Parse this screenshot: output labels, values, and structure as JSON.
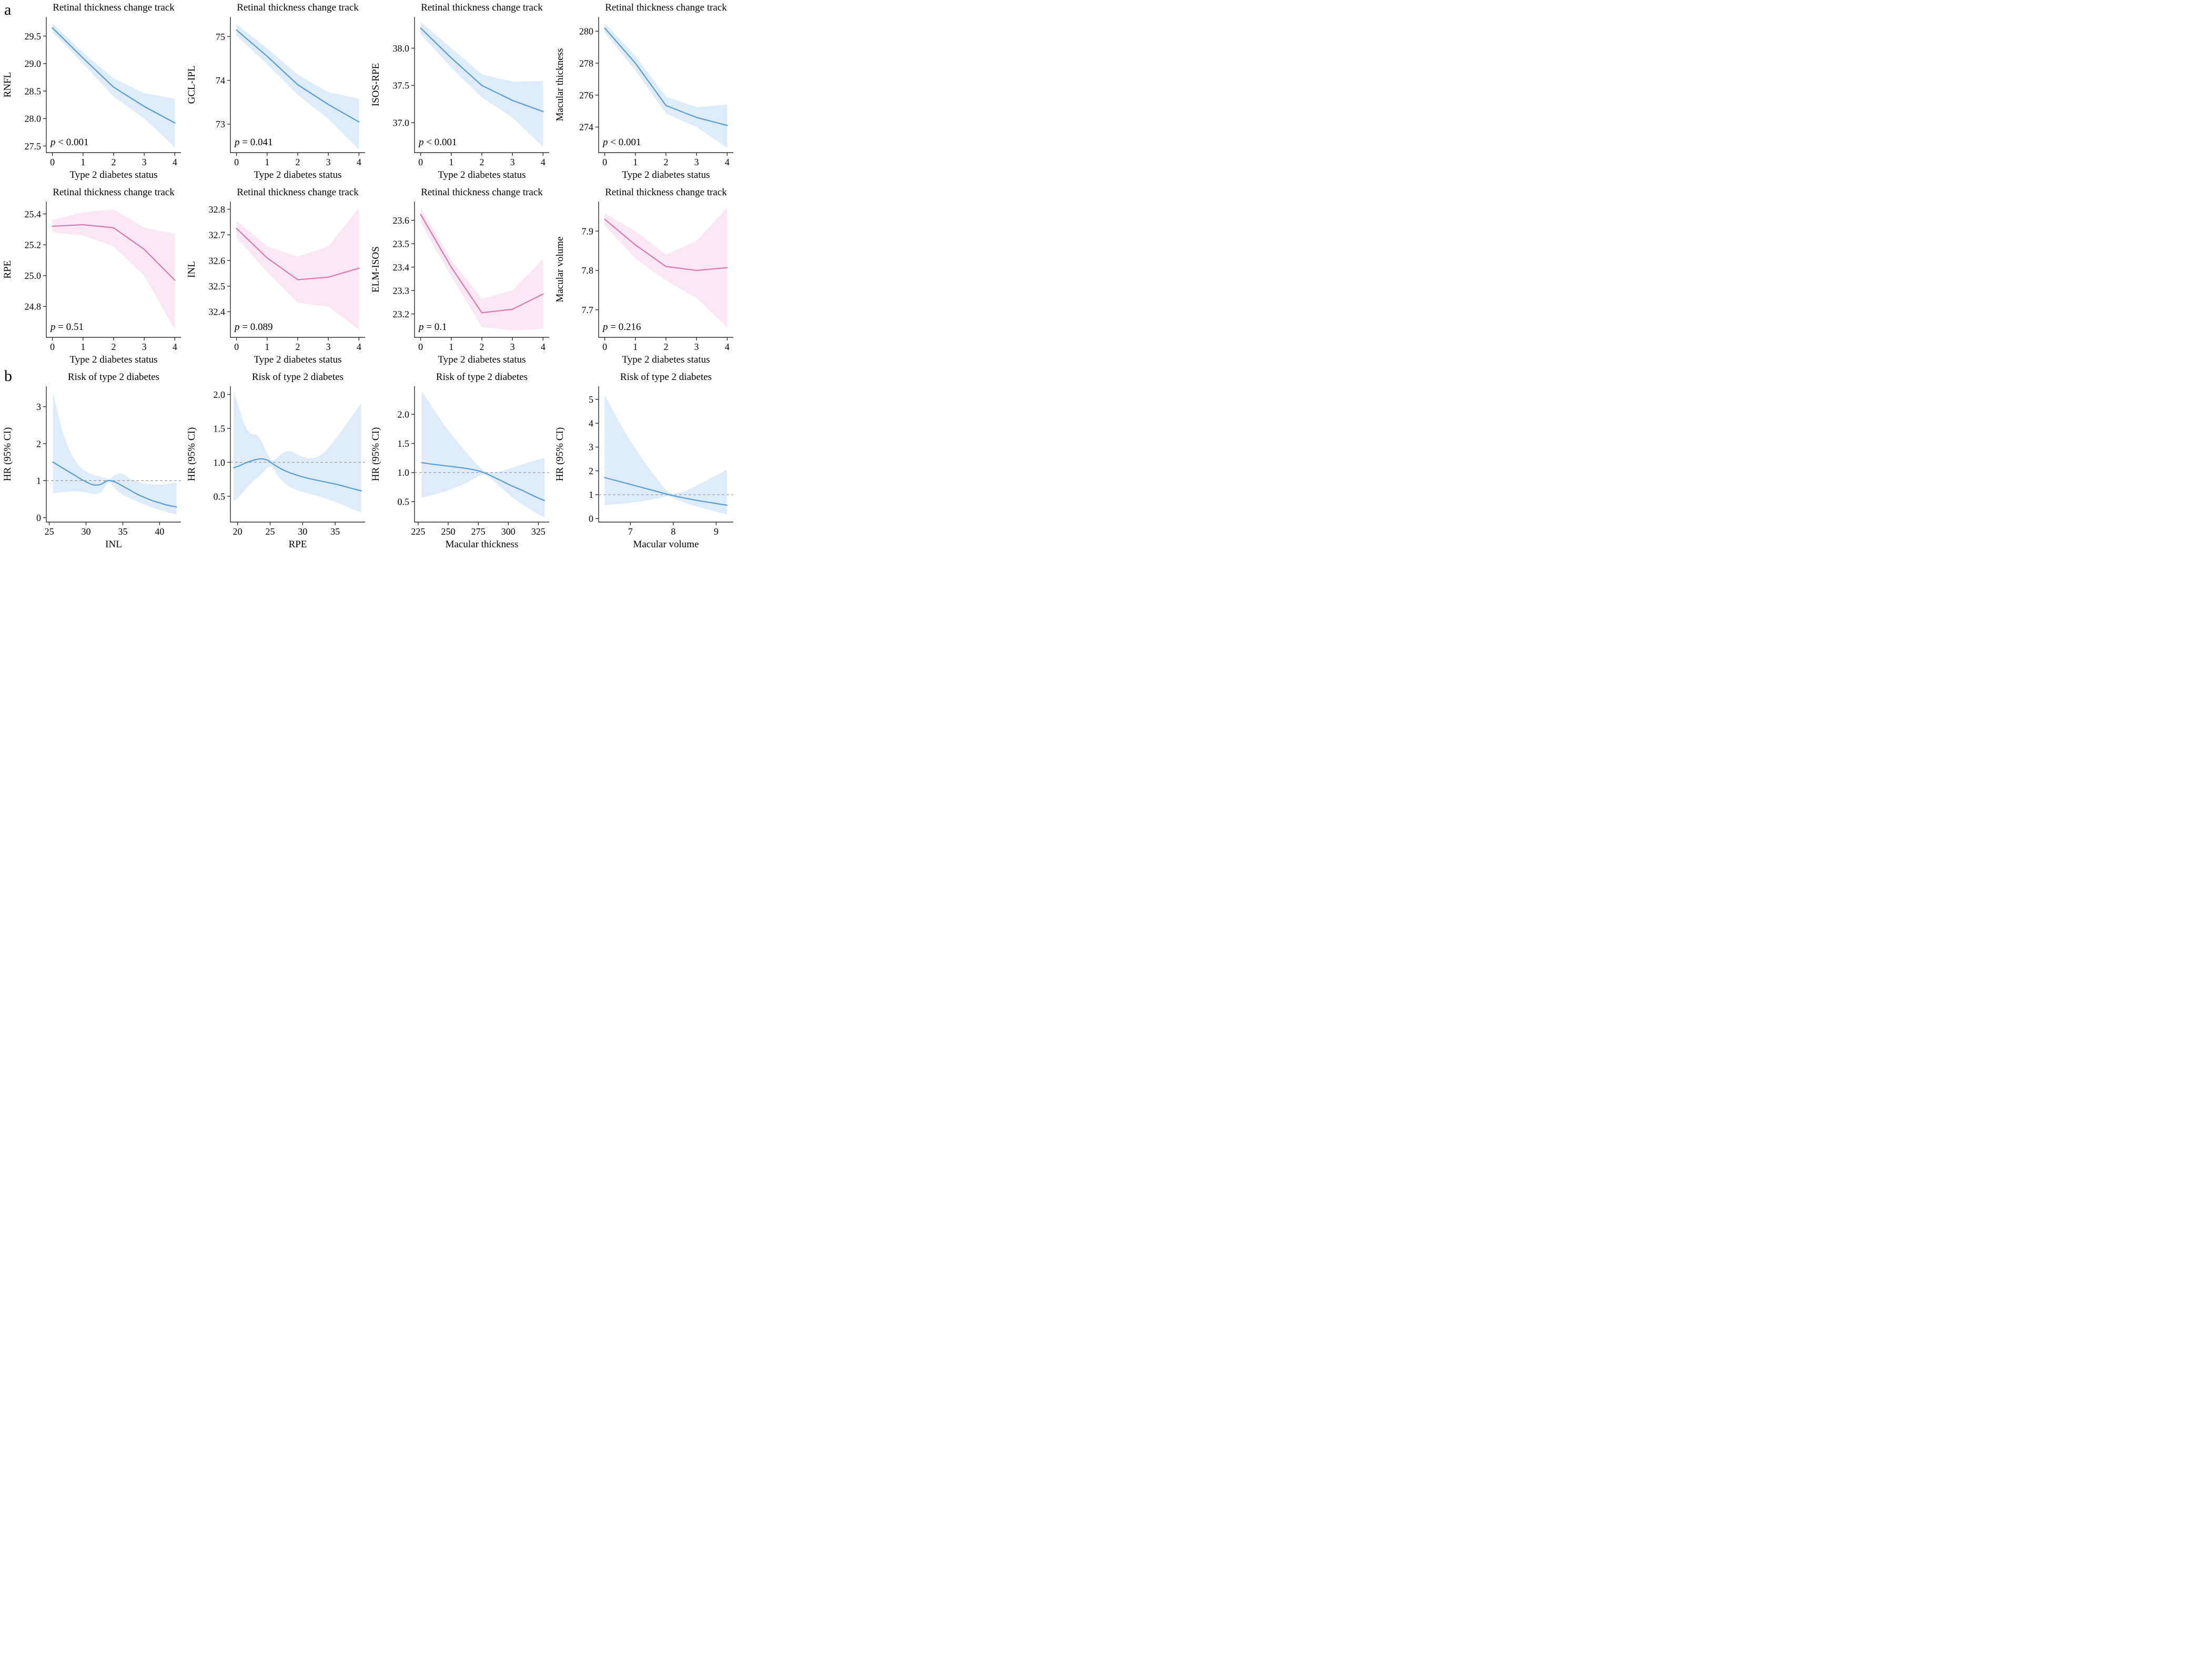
{
  "figure": {
    "panel_a": "a",
    "panel_b": "b",
    "layout": {
      "columns": 4,
      "rows": 3,
      "grid": true,
      "legend": "none"
    }
  },
  "colors": {
    "blue_line": "#5b9fd4",
    "blue_band": "#ddecf8",
    "pink_line": "#d97cb0",
    "pink_band": "#f9e7f3",
    "axis": "#2f2f2f",
    "ref_line": "#9a9a9a",
    "text": "#000000"
  },
  "chart_data": [
    {
      "id": "track-rnfl",
      "type": "line",
      "palette": "blue",
      "smooth": false,
      "ref_line": null,
      "title": "Retinal thickness change track",
      "xlabel": "Type 2 diabetes status",
      "ylabel": "RNFL",
      "p_label": "p < 0.001",
      "x": [
        0,
        1,
        2,
        3,
        4
      ],
      "y": [
        29.65,
        29.1,
        28.57,
        28.22,
        27.92
      ],
      "upper": [
        29.73,
        29.2,
        28.73,
        28.46,
        28.36
      ],
      "lower": [
        29.57,
        29.0,
        28.4,
        28.0,
        27.48
      ],
      "xlim": [
        -0.2,
        4.2
      ],
      "ylim": [
        27.38,
        29.85
      ],
      "xtick_values": [
        0,
        1,
        2,
        3,
        4
      ],
      "xtick_labels": [
        "0",
        "1",
        "2",
        "3",
        "4"
      ],
      "ytick_values": [
        27.5,
        28.0,
        28.5,
        29.0,
        29.5
      ],
      "ytick_labels": [
        "27.5",
        "28.0",
        "28.5",
        "29.0",
        "29.5"
      ]
    },
    {
      "id": "track-gcl-ipl",
      "type": "line",
      "palette": "blue",
      "smooth": false,
      "ref_line": null,
      "title": "Retinal thickness change track",
      "xlabel": "Type 2 diabetes status",
      "ylabel": "GCL-IPL",
      "p_label": "p = 0.041",
      "x": [
        0,
        1,
        2,
        3,
        4
      ],
      "y": [
        75.15,
        74.55,
        73.9,
        73.45,
        73.05
      ],
      "upper": [
        75.28,
        74.73,
        74.13,
        73.73,
        73.58
      ],
      "lower": [
        75.02,
        74.37,
        73.67,
        73.12,
        72.42
      ],
      "xlim": [
        -0.2,
        4.2
      ],
      "ylim": [
        72.35,
        75.45
      ],
      "xtick_values": [
        0,
        1,
        2,
        3,
        4
      ],
      "xtick_labels": [
        "0",
        "1",
        "2",
        "3",
        "4"
      ],
      "ytick_values": [
        73,
        74,
        75
      ],
      "ytick_labels": [
        "73",
        "74",
        "75"
      ]
    },
    {
      "id": "track-isos-rpe",
      "type": "line",
      "palette": "blue",
      "smooth": false,
      "ref_line": null,
      "title": "Retinal thickness change track",
      "xlabel": "Type 2 diabetes status",
      "ylabel": "ISOS-RPE",
      "p_label": "p < 0.001",
      "x": [
        0,
        1,
        2,
        3,
        4
      ],
      "y": [
        38.27,
        37.87,
        37.5,
        37.3,
        37.15
      ],
      "upper": [
        38.35,
        38.0,
        37.65,
        37.55,
        37.56
      ],
      "lower": [
        38.19,
        37.74,
        37.34,
        37.07,
        36.68
      ],
      "xlim": [
        -0.2,
        4.2
      ],
      "ylim": [
        36.6,
        38.42
      ],
      "xtick_values": [
        0,
        1,
        2,
        3,
        4
      ],
      "xtick_labels": [
        "0",
        "1",
        "2",
        "3",
        "4"
      ],
      "ytick_values": [
        37.0,
        37.5,
        38.0
      ],
      "ytick_labels": [
        "37.0",
        "37.5",
        "38.0"
      ]
    },
    {
      "id": "track-macular-thickness",
      "type": "line",
      "palette": "blue",
      "smooth": false,
      "ref_line": null,
      "title": "Retinal thickness change track",
      "xlabel": "Type 2 diabetes status",
      "ylabel": "Macular thickness",
      "p_label": "p < 0.001",
      "x": [
        0,
        1,
        2,
        3,
        4
      ],
      "y": [
        280.2,
        278.0,
        275.35,
        274.6,
        274.1
      ],
      "upper": [
        280.5,
        278.45,
        275.9,
        275.25,
        275.4
      ],
      "lower": [
        279.9,
        277.55,
        274.85,
        274.0,
        272.7
      ],
      "xlim": [
        -0.2,
        4.2
      ],
      "ylim": [
        272.4,
        280.9
      ],
      "xtick_values": [
        0,
        1,
        2,
        3,
        4
      ],
      "xtick_labels": [
        "0",
        "1",
        "2",
        "3",
        "4"
      ],
      "ytick_values": [
        274,
        276,
        278,
        280
      ],
      "ytick_labels": [
        "274",
        "276",
        "278",
        "280"
      ]
    },
    {
      "id": "track-rpe",
      "type": "line",
      "palette": "pink",
      "smooth": false,
      "ref_line": null,
      "title": "Retinal thickness change track",
      "xlabel": "Type 2 diabetes status",
      "ylabel": "RPE",
      "p_label": "p = 0.51",
      "x": [
        0,
        1,
        2,
        3,
        4
      ],
      "y": [
        25.32,
        25.33,
        25.31,
        25.17,
        24.97
      ],
      "upper": [
        25.36,
        25.41,
        25.43,
        25.31,
        25.27
      ],
      "lower": [
        25.28,
        25.26,
        25.19,
        25.0,
        24.65
      ],
      "xlim": [
        -0.2,
        4.2
      ],
      "ylim": [
        24.6,
        25.48
      ],
      "xtick_values": [
        0,
        1,
        2,
        3,
        4
      ],
      "xtick_labels": [
        "0",
        "1",
        "2",
        "3",
        "4"
      ],
      "ytick_values": [
        24.8,
        25.0,
        25.2,
        25.4
      ],
      "ytick_labels": [
        "24.8",
        "25.0",
        "25.2",
        "25.4"
      ]
    },
    {
      "id": "track-inl",
      "type": "line",
      "palette": "pink",
      "smooth": false,
      "ref_line": null,
      "title": "Retinal thickness change track",
      "xlabel": "Type 2 diabetes status",
      "ylabel": "INL",
      "p_label": "p = 0.089",
      "x": [
        0,
        1,
        2,
        3,
        4
      ],
      "y": [
        32.725,
        32.61,
        32.525,
        32.535,
        32.57
      ],
      "upper": [
        32.755,
        32.655,
        32.615,
        32.655,
        32.805
      ],
      "lower": [
        32.69,
        32.555,
        32.435,
        32.42,
        32.33
      ],
      "xlim": [
        -0.2,
        4.2
      ],
      "ylim": [
        32.3,
        32.83
      ],
      "xtick_values": [
        0,
        1,
        2,
        3,
        4
      ],
      "xtick_labels": [
        "0",
        "1",
        "2",
        "3",
        "4"
      ],
      "ytick_values": [
        32.4,
        32.5,
        32.6,
        32.7,
        32.8
      ],
      "ytick_labels": [
        "32.4",
        "32.5",
        "32.6",
        "32.7",
        "32.8"
      ]
    },
    {
      "id": "track-elm-isos",
      "type": "line",
      "palette": "pink",
      "smooth": false,
      "ref_line": null,
      "title": "Retinal thickness change track",
      "xlabel": "Type 2 diabetes status",
      "ylabel": "ELM-ISOS",
      "p_label": "p = 0.1",
      "x": [
        0,
        1,
        2,
        3,
        4
      ],
      "y": [
        23.625,
        23.4,
        23.205,
        23.22,
        23.285
      ],
      "upper": [
        23.655,
        23.43,
        23.265,
        23.3,
        23.435
      ],
      "lower": [
        23.59,
        23.36,
        23.145,
        23.13,
        23.135
      ],
      "xlim": [
        -0.2,
        4.2
      ],
      "ylim": [
        23.1,
        23.68
      ],
      "xtick_values": [
        0,
        1,
        2,
        3,
        4
      ],
      "xtick_labels": [
        "0",
        "1",
        "2",
        "3",
        "4"
      ],
      "ytick_values": [
        23.2,
        23.3,
        23.4,
        23.5,
        23.6
      ],
      "ytick_labels": [
        "23.2",
        "23.3",
        "23.4",
        "23.5",
        "23.6"
      ]
    },
    {
      "id": "track-macular-volume",
      "type": "line",
      "palette": "pink",
      "smooth": false,
      "ref_line": null,
      "title": "Retinal thickness change track",
      "xlabel": "Type 2 diabetes status",
      "ylabel": "Macular volume",
      "p_label": "p = 0.216",
      "x": [
        0,
        1,
        2,
        3,
        4
      ],
      "y": [
        7.93,
        7.865,
        7.81,
        7.8,
        7.807
      ],
      "upper": [
        7.945,
        7.9,
        7.84,
        7.875,
        7.96
      ],
      "lower": [
        7.915,
        7.83,
        7.775,
        7.73,
        7.655
      ],
      "xlim": [
        -0.2,
        4.2
      ],
      "ylim": [
        7.63,
        7.975
      ],
      "xtick_values": [
        0,
        1,
        2,
        3,
        4
      ],
      "xtick_labels": [
        "0",
        "1",
        "2",
        "3",
        "4"
      ],
      "ytick_values": [
        7.7,
        7.8,
        7.9
      ],
      "ytick_labels": [
        "7.7",
        "7.8",
        "7.9"
      ]
    },
    {
      "id": "hr-inl",
      "type": "line",
      "palette": "blue",
      "smooth": true,
      "ref_line": 1,
      "title": "Risk of type 2 diabetes",
      "xlabel": "INL",
      "ylabel": "HR (95% CI)",
      "p_label": null,
      "x": [
        25.5,
        26.5,
        27.5,
        28.5,
        29.5,
        30.5,
        31.2,
        32.0,
        32.8,
        33.3,
        34.0,
        35.0,
        36.0,
        37.0,
        38.0,
        39.0,
        40.0,
        41.0,
        42.3
      ],
      "y": [
        1.5,
        1.38,
        1.26,
        1.14,
        1.02,
        0.92,
        0.88,
        0.9,
        0.99,
        1.0,
        0.96,
        0.85,
        0.74,
        0.63,
        0.54,
        0.46,
        0.4,
        0.34,
        0.29
      ],
      "upper": [
        3.4,
        2.55,
        1.95,
        1.55,
        1.32,
        1.2,
        1.15,
        1.1,
        1.06,
        1.05,
        1.16,
        1.18,
        1.05,
        0.97,
        0.92,
        0.9,
        0.89,
        0.91,
        0.95
      ],
      "lower": [
        0.66,
        0.68,
        0.7,
        0.71,
        0.7,
        0.66,
        0.64,
        0.68,
        0.9,
        0.95,
        0.77,
        0.62,
        0.52,
        0.43,
        0.35,
        0.27,
        0.21,
        0.15,
        0.09
      ],
      "xlim": [
        24.6,
        42.9
      ],
      "ylim": [
        -0.12,
        3.55
      ],
      "xtick_values": [
        25,
        30,
        35,
        40
      ],
      "xtick_labels": [
        "25",
        "30",
        "35",
        "40"
      ],
      "ytick_values": [
        0,
        1,
        2,
        3
      ],
      "ytick_labels": [
        "0",
        "1",
        "2",
        "3"
      ]
    },
    {
      "id": "hr-rpe",
      "type": "line",
      "palette": "blue",
      "smooth": true,
      "ref_line": 1,
      "title": "Risk of type 2 diabetes",
      "xlabel": "RPE",
      "ylabel": "HR (95% CI)",
      "p_label": null,
      "x": [
        19.4,
        20.3,
        21.2,
        22.1,
        23.0,
        23.8,
        24.6,
        25.4,
        26.2,
        27.2,
        28.2,
        29.5,
        31.0,
        32.5,
        34.0,
        35.5,
        37.0,
        38.2,
        39.0
      ],
      "y": [
        0.92,
        0.95,
        0.99,
        1.02,
        1.045,
        1.05,
        1.03,
        0.98,
        0.93,
        0.88,
        0.84,
        0.8,
        0.76,
        0.73,
        0.7,
        0.67,
        0.63,
        0.6,
        0.58
      ],
      "upper": [
        2.05,
        1.78,
        1.53,
        1.42,
        1.4,
        1.28,
        1.12,
        1.03,
        1.08,
        1.15,
        1.16,
        1.1,
        1.06,
        1.09,
        1.22,
        1.4,
        1.6,
        1.76,
        1.87
      ],
      "lower": [
        0.42,
        0.5,
        0.6,
        0.7,
        0.77,
        0.84,
        0.92,
        0.93,
        0.8,
        0.7,
        0.63,
        0.58,
        0.54,
        0.5,
        0.45,
        0.4,
        0.34,
        0.29,
        0.26
      ],
      "xlim": [
        18.9,
        39.6
      ],
      "ylim": [
        0.12,
        2.12
      ],
      "xtick_values": [
        20,
        25,
        30,
        35
      ],
      "xtick_labels": [
        "20",
        "25",
        "30",
        "35"
      ],
      "ytick_values": [
        0.5,
        1.0,
        1.5,
        2.0
      ],
      "ytick_labels": [
        "0.5",
        "1.0",
        "1.5",
        "2.0"
      ]
    },
    {
      "id": "hr-macular-thickness",
      "type": "line",
      "palette": "blue",
      "smooth": true,
      "ref_line": 1,
      "title": "Risk of type 2 diabetes",
      "xlabel": "Macular thickness",
      "ylabel": "HR (95% CI)",
      "p_label": null,
      "x": [
        228,
        238,
        248,
        258,
        265,
        272,
        278,
        283,
        288,
        295,
        303,
        312,
        321,
        330
      ],
      "y": [
        1.17,
        1.14,
        1.115,
        1.09,
        1.07,
        1.045,
        1.01,
        0.97,
        0.92,
        0.85,
        0.77,
        0.69,
        0.6,
        0.52
      ],
      "upper": [
        2.4,
        2.08,
        1.78,
        1.52,
        1.35,
        1.18,
        1.06,
        1.0,
        1.0,
        1.03,
        1.08,
        1.14,
        1.2,
        1.25
      ],
      "lower": [
        0.57,
        0.62,
        0.68,
        0.76,
        0.82,
        0.9,
        0.96,
        0.94,
        0.85,
        0.72,
        0.58,
        0.45,
        0.33,
        0.23
      ],
      "xlim": [
        222,
        334
      ],
      "ylim": [
        0.15,
        2.48
      ],
      "xtick_values": [
        225,
        250,
        275,
        300,
        325
      ],
      "xtick_labels": [
        "225",
        "250",
        "275",
        "300",
        "325"
      ],
      "ytick_values": [
        0.5,
        1.0,
        1.5,
        2.0
      ],
      "ytick_labels": [
        "0.5",
        "1.0",
        "1.5",
        "2.0"
      ]
    },
    {
      "id": "hr-macular-volume",
      "type": "line",
      "palette": "blue",
      "smooth": true,
      "ref_line": 1,
      "title": "Risk of type 2 diabetes",
      "xlabel": "Macular volume",
      "ylabel": "HR (95% CI)",
      "p_label": null,
      "x": [
        6.4,
        6.65,
        6.9,
        7.15,
        7.4,
        7.65,
        7.9,
        8.15,
        8.4,
        8.65,
        8.9,
        9.1,
        9.25
      ],
      "y": [
        1.72,
        1.6,
        1.48,
        1.36,
        1.24,
        1.12,
        1.0,
        0.9,
        0.81,
        0.73,
        0.66,
        0.6,
        0.56
      ],
      "upper": [
        5.2,
        4.35,
        3.55,
        2.85,
        2.2,
        1.6,
        1.1,
        1.1,
        1.25,
        1.48,
        1.72,
        1.9,
        2.05
      ],
      "lower": [
        0.56,
        0.6,
        0.64,
        0.69,
        0.76,
        0.85,
        0.92,
        0.74,
        0.58,
        0.45,
        0.33,
        0.24,
        0.18
      ],
      "xlim": [
        6.26,
        9.4
      ],
      "ylim": [
        -0.15,
        5.55
      ],
      "xtick_values": [
        7,
        8,
        9
      ],
      "xtick_labels": [
        "7",
        "8",
        "9"
      ],
      "ytick_values": [
        0,
        1,
        2,
        3,
        4,
        5
      ],
      "ytick_labels": [
        "0",
        "1",
        "2",
        "3",
        "4",
        "5"
      ]
    }
  ]
}
